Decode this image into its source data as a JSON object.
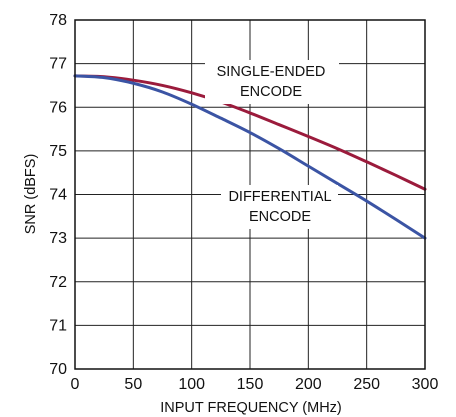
{
  "chart_data": {
    "type": "line",
    "xlabel": "INPUT FREQUENCY (MHz)",
    "ylabel": "SNR (dBFS)",
    "xlim": [
      0,
      300
    ],
    "ylim": [
      70,
      78
    ],
    "xticks": [
      "0",
      "50",
      "100",
      "150",
      "200",
      "250",
      "300"
    ],
    "yticks": [
      "70",
      "71",
      "72",
      "73",
      "74",
      "75",
      "76",
      "77",
      "78"
    ],
    "grid": true,
    "series": [
      {
        "annotation": [
          "SINGLE-ENDED",
          "ENCODE"
        ],
        "color": "#9b1b3c",
        "x": [
          0,
          25,
          50,
          75,
          100,
          125,
          150,
          175,
          200,
          225,
          250,
          275,
          300
        ],
        "y": [
          76.72,
          76.7,
          76.62,
          76.5,
          76.33,
          76.12,
          75.87,
          75.6,
          75.33,
          75.05,
          74.75,
          74.44,
          74.12
        ]
      },
      {
        "annotation": [
          "DIFFERENTIAL",
          "ENCODE"
        ],
        "color": "#3b54a4",
        "x": [
          0,
          25,
          50,
          75,
          100,
          125,
          150,
          175,
          200,
          225,
          250,
          275,
          300
        ],
        "y": [
          76.72,
          76.68,
          76.55,
          76.35,
          76.07,
          75.75,
          75.42,
          75.05,
          74.65,
          74.25,
          73.85,
          73.43,
          73.0
        ]
      }
    ]
  }
}
